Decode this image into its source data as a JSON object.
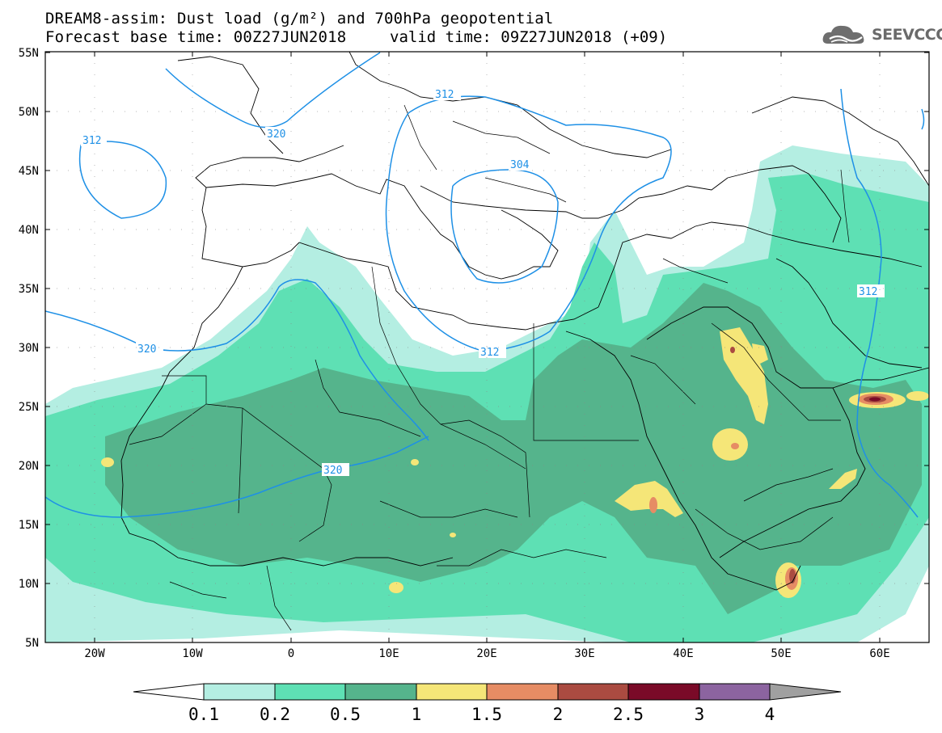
{
  "header": {
    "title_line1": "DREAM8-assim: Dust load (g/m²) and 700hPa geopotential",
    "title_line2a": "Forecast base time: 00Z27JUN2018",
    "title_line2b": "valid time: 09Z27JUN2018 (+09)"
  },
  "logo": {
    "text": "SEEVCCC",
    "icon": "cloud-icon"
  },
  "map": {
    "lat_labels": [
      "55N",
      "50N",
      "45N",
      "40N",
      "35N",
      "30N",
      "25N",
      "20N",
      "15N",
      "10N",
      "5N"
    ],
    "lon_labels": [
      "20W",
      "10W",
      "0",
      "10E",
      "20E",
      "30E",
      "40E",
      "50E",
      "60E"
    ],
    "contour_labels": [
      "312",
      "320",
      "312",
      "304",
      "312",
      "320",
      "320",
      "312"
    ],
    "colors": {
      "contour": "#1e90e6",
      "land_border": "#000000"
    }
  },
  "colorbar": {
    "labels": [
      "0.1",
      "0.2",
      "0.5",
      "1",
      "1.5",
      "2",
      "2.5",
      "3",
      "4"
    ],
    "colors": [
      "#ffffff",
      "#b4eee2",
      "#5ee0b4",
      "#55b48c",
      "#f5e678",
      "#e68c64",
      "#aa4b41",
      "#7a0a28",
      "#8c64a0",
      "#a0a0a0"
    ]
  }
}
